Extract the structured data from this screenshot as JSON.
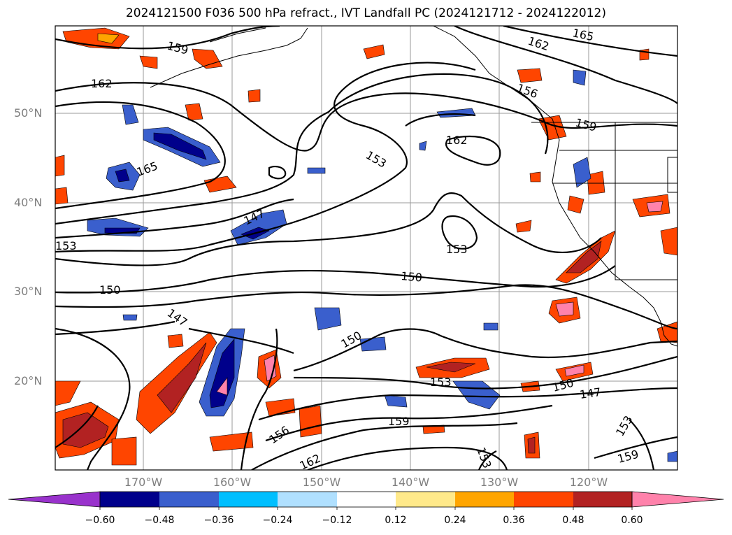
{
  "title": "2024121500 F036 500 hPa refract., IVT Landfall PC (2024121712 - 2024122012)",
  "lat_labels": [
    "50°N",
    "40°N",
    "30°N",
    "20°N"
  ],
  "lon_labels": [
    "170°W",
    "160°W",
    "150°W",
    "140°W",
    "130°W",
    "120°W"
  ],
  "contour_labels": [
    "165",
    "162",
    "159",
    "156",
    "162",
    "153",
    "162",
    "165",
    "159",
    "153",
    "150",
    "147",
    "150",
    "147",
    "153",
    "159",
    "156",
    "162",
    "150",
    "153",
    "150",
    "147",
    "153",
    "159",
    "153"
  ],
  "colorbar": {
    "ticks": [
      "−0.60",
      "−0.48",
      "−0.36",
      "−0.24",
      "−0.12",
      "0.12",
      "0.24",
      "0.36",
      "0.48",
      "0.60"
    ],
    "colors": [
      "#9932cc",
      "#00008b",
      "#3a5fcd",
      "#00bfff",
      "#b0e0ff",
      "#ffffff",
      "#ffe98a",
      "#ffa500",
      "#ff4500",
      "#b22222",
      "#ff82ab"
    ]
  }
}
